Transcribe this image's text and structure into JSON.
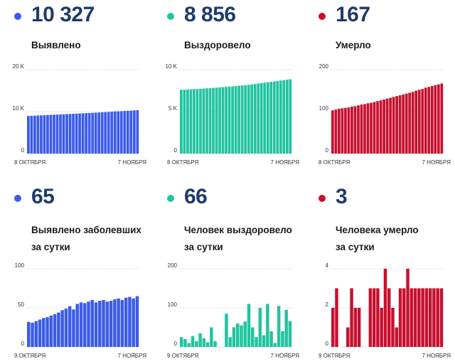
{
  "colors": {
    "blue": "#3b5be8",
    "green": "#21c4a0",
    "red": "#c8102e"
  },
  "panels": [
    {
      "value": "10 327",
      "label": [
        "Выявлено"
      ],
      "color": "blue",
      "chart_data": {
        "type": "bar",
        "title": "Выявлено",
        "x_start_label": "8 ОКТЯБРЯ",
        "x_end_label": "7 НОЯБРЯ",
        "yticks": [
          {
            "v": 0,
            "t": "0"
          },
          {
            "v": 10000,
            "t": "10 K"
          },
          {
            "v": 20000,
            "t": "20 K"
          }
        ],
        "ylim": [
          0,
          20000
        ],
        "values": [
          8950,
          9000,
          9040,
          9080,
          9110,
          9150,
          9190,
          9230,
          9260,
          9300,
          9340,
          9370,
          9410,
          9450,
          9490,
          9520,
          9560,
          9600,
          9640,
          9680,
          9720,
          9760,
          9800,
          9850,
          9890,
          9940,
          9990,
          10040,
          10080,
          10120,
          10160,
          10200,
          10240,
          10290,
          10327
        ]
      }
    },
    {
      "value": "8 856",
      "label": [
        "Выздоровело"
      ],
      "color": "green",
      "chart_data": {
        "type": "bar",
        "title": "Выздоровело",
        "x_start_label": "8 ОКТЯБРЯ",
        "x_end_label": "7 НОЯБРЯ",
        "yticks": [
          {
            "v": 0,
            "t": "0"
          },
          {
            "v": 5000,
            "t": "5 K"
          },
          {
            "v": 10000,
            "t": "10 K"
          }
        ],
        "ylim": [
          0,
          10000
        ],
        "values": [
          7600,
          7620,
          7640,
          7660,
          7680,
          7700,
          7720,
          7750,
          7780,
          7800,
          7830,
          7860,
          7890,
          7920,
          7950,
          7980,
          8010,
          8040,
          8080,
          8120,
          8160,
          8200,
          8250,
          8300,
          8350,
          8400,
          8450,
          8500,
          8550,
          8600,
          8650,
          8700,
          8750,
          8810,
          8856
        ]
      }
    },
    {
      "value": "167",
      "label": [
        "Умерло"
      ],
      "color": "red",
      "chart_data": {
        "type": "bar",
        "title": "Умерло",
        "x_start_label": "8 ОКТЯБРЯ",
        "x_end_label": "7 НОЯБРЯ",
        "yticks": [
          {
            "v": 0,
            "t": "0"
          },
          {
            "v": 100,
            "t": "100"
          },
          {
            "v": 200,
            "t": "200"
          }
        ],
        "ylim": [
          0,
          200
        ],
        "values": [
          103,
          105,
          107,
          108,
          109,
          110,
          112,
          113,
          115,
          117,
          118,
          120,
          121,
          123,
          125,
          127,
          129,
          131,
          133,
          135,
          137,
          139,
          141,
          143,
          145,
          147,
          150,
          152,
          154,
          157,
          159,
          161,
          163,
          165,
          167
        ]
      }
    },
    {
      "value": "65",
      "label": [
        "Выявлено заболевших",
        "за сутки"
      ],
      "color": "blue",
      "chart_data": {
        "type": "bar",
        "title": "Выявлено заболевших за сутки",
        "x_start_label": "9 ОКТЯБРЯ",
        "x_end_label": "7 НОЯБРЯ",
        "yticks": [
          {
            "v": 0,
            "t": "0"
          },
          {
            "v": 50,
            "t": "50"
          },
          {
            "v": 100,
            "t": "100"
          }
        ],
        "ylim": [
          0,
          100
        ],
        "values": [
          32,
          31,
          33,
          35,
          37,
          38,
          40,
          42,
          44,
          47,
          49,
          52,
          48,
          55,
          57,
          56,
          58,
          60,
          57,
          59,
          60,
          58,
          59,
          61,
          62,
          60,
          63,
          64,
          62,
          65
        ]
      }
    },
    {
      "value": "66",
      "label": [
        "Человек выздоровело",
        "за сутки"
      ],
      "color": "green",
      "chart_data": {
        "type": "bar",
        "title": "Человек выздоровело за сутки",
        "x_start_label": "9 ОКТЯБРЯ",
        "x_end_label": "7 НОЯБРЯ",
        "yticks": [
          {
            "v": 0,
            "t": "0"
          },
          {
            "v": 100,
            "t": "100"
          },
          {
            "v": 200,
            "t": "200"
          }
        ],
        "ylim": [
          0,
          200
        ],
        "values": [
          25,
          20,
          10,
          28,
          15,
          35,
          22,
          12,
          50,
          15,
          0,
          0,
          85,
          25,
          50,
          60,
          55,
          65,
          110,
          50,
          25,
          100,
          30,
          110,
          40,
          10,
          105,
          40,
          95,
          66
        ]
      }
    },
    {
      "value": "3",
      "label": [
        "Человека умерло",
        "за сутки"
      ],
      "color": "red",
      "chart_data": {
        "type": "bar",
        "title": "Человека умерло за сутки",
        "x_start_label": "9 ОКТЯБРЯ",
        "x_end_label": "7 НОЯБРЯ",
        "yticks": [
          {
            "v": 0,
            "t": "0"
          },
          {
            "v": 2,
            "t": "2"
          },
          {
            "v": 4,
            "t": "4"
          }
        ],
        "ylim": [
          0,
          4
        ],
        "values": [
          2,
          3,
          0,
          0,
          1,
          3,
          2,
          2,
          0,
          0,
          3,
          3,
          3,
          2,
          4,
          3,
          2,
          1,
          3,
          3,
          4,
          3,
          3,
          3,
          3,
          3,
          3,
          3,
          3,
          3
        ]
      }
    }
  ]
}
